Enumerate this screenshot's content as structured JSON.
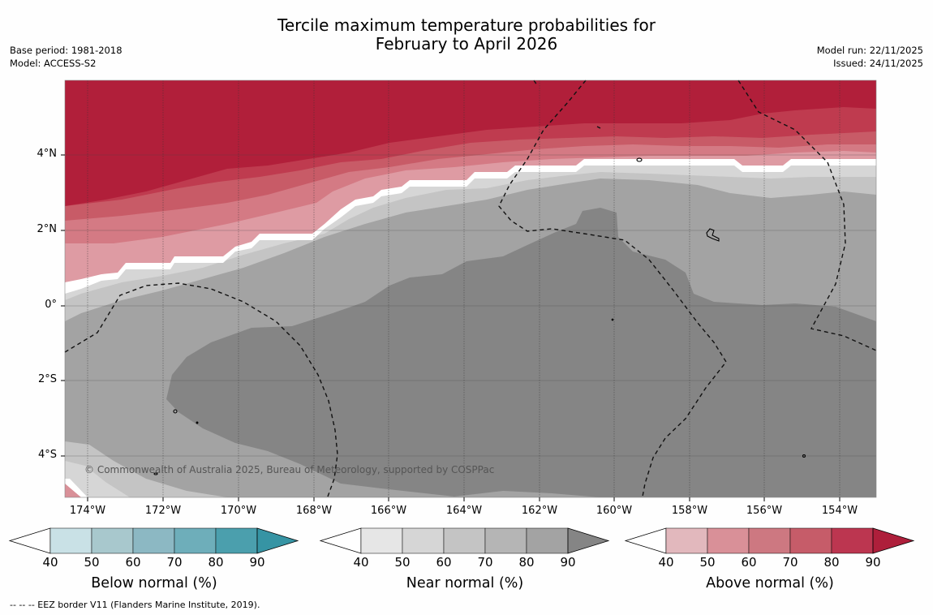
{
  "title": {
    "line1": "Tercile maximum temperature probabilities for",
    "line2": "February to April 2026"
  },
  "meta_left": {
    "base_period": "Base period: 1981-2018",
    "model": "Model: ACCESS-S2"
  },
  "meta_right": {
    "model_run": "Model run: 22/11/2025",
    "issued": "Issued: 24/11/2025"
  },
  "map": {
    "lat_labels": [
      "4°N",
      "2°N",
      "0°",
      "2°S",
      "4°S"
    ],
    "lon_labels": [
      "174°W",
      "172°W",
      "170°W",
      "168°W",
      "166°W",
      "164°W",
      "162°W",
      "160°W",
      "158°W",
      "156°W",
      "154°W"
    ],
    "copyright": "© Commonwealth of Australia 2025, Bureau of Meteorology, supported by COSPPac",
    "colors": {
      "above_90": "#b11f3a",
      "above_80": "#bf3b4f",
      "above_70": "#c85b67",
      "above_60": "#d47a84",
      "above_50": "#de9ba3",
      "white_band": "#ffffff",
      "near_50": "#d6d6d6",
      "near_60": "#c4c4c4",
      "near_70": "#a3a3a3",
      "near_80": "#858585"
    }
  },
  "colorbars": [
    {
      "name": "below",
      "title": "Below normal (%)",
      "ticks": [
        "40",
        "50",
        "60",
        "70",
        "80",
        "90"
      ],
      "colors": [
        "#ffffff",
        "#c9e1e6",
        "#a8c8cd",
        "#8cb8c3",
        "#6eaeba",
        "#4b9fad",
        "#3694a4"
      ]
    },
    {
      "name": "near",
      "title": "Near normal (%)",
      "ticks": [
        "40",
        "50",
        "60",
        "70",
        "80",
        "90"
      ],
      "colors": [
        "#ffffff",
        "#e6e6e6",
        "#d6d6d6",
        "#c4c4c4",
        "#b5b5b5",
        "#a3a3a3",
        "#858585"
      ]
    },
    {
      "name": "above",
      "title": "Above normal (%)",
      "ticks": [
        "40",
        "50",
        "60",
        "70",
        "80",
        "90"
      ],
      "colors": [
        "#ffffff",
        "#e2b8bd",
        "#d99098",
        "#cd7881",
        "#c65c69",
        "#bc3650",
        "#ae1f3b"
      ]
    }
  ],
  "footnote": "--  --  -- EEZ border V11 (Flanders Marine Institute, 2019)."
}
